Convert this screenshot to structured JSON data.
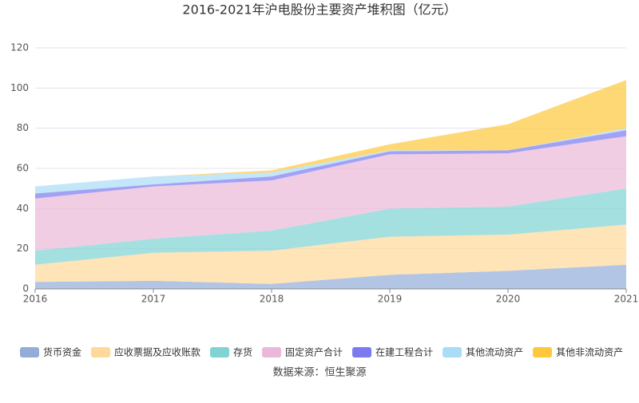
{
  "chart_data": {
    "type": "stacked_area",
    "title": "2016-2021年沪电股份主要资产堆积图（亿元）",
    "source": "数据来源：恒生聚源",
    "categories": [
      "2016",
      "2017",
      "2018",
      "2019",
      "2020",
      "2021"
    ],
    "series": [
      {
        "name": "货币资金",
        "color": "#93acd9",
        "values": [
          3.5,
          4,
          2.5,
          7,
          9,
          12
        ]
      },
      {
        "name": "应收票据及应收账款",
        "color": "#ffd89a",
        "values": [
          8.5,
          14,
          16.5,
          19,
          18,
          20
        ]
      },
      {
        "name": "存货",
        "color": "#7fd3d3",
        "values": [
          7,
          7,
          10,
          14,
          14,
          18
        ]
      },
      {
        "name": "固定资产合计",
        "color": "#ebb8d9",
        "values": [
          26,
          26,
          25,
          27,
          26.5,
          26
        ]
      },
      {
        "name": "在建工程合计",
        "color": "#7b7bef",
        "values": [
          2.5,
          1,
          2,
          1.5,
          1.5,
          3
        ]
      },
      {
        "name": "其他流动资产",
        "color": "#a9dcf7",
        "values": [
          3.5,
          4,
          2,
          0.5,
          0,
          1
        ]
      },
      {
        "name": "其他非流动资产",
        "color": "#ffc83c",
        "values": [
          0,
          0,
          1,
          3,
          13,
          24
        ]
      }
    ],
    "ylim": [
      0,
      120
    ],
    "yticks": [
      0,
      20,
      40,
      60,
      80,
      100,
      120
    ],
    "grid": true,
    "legend": "bottom"
  }
}
